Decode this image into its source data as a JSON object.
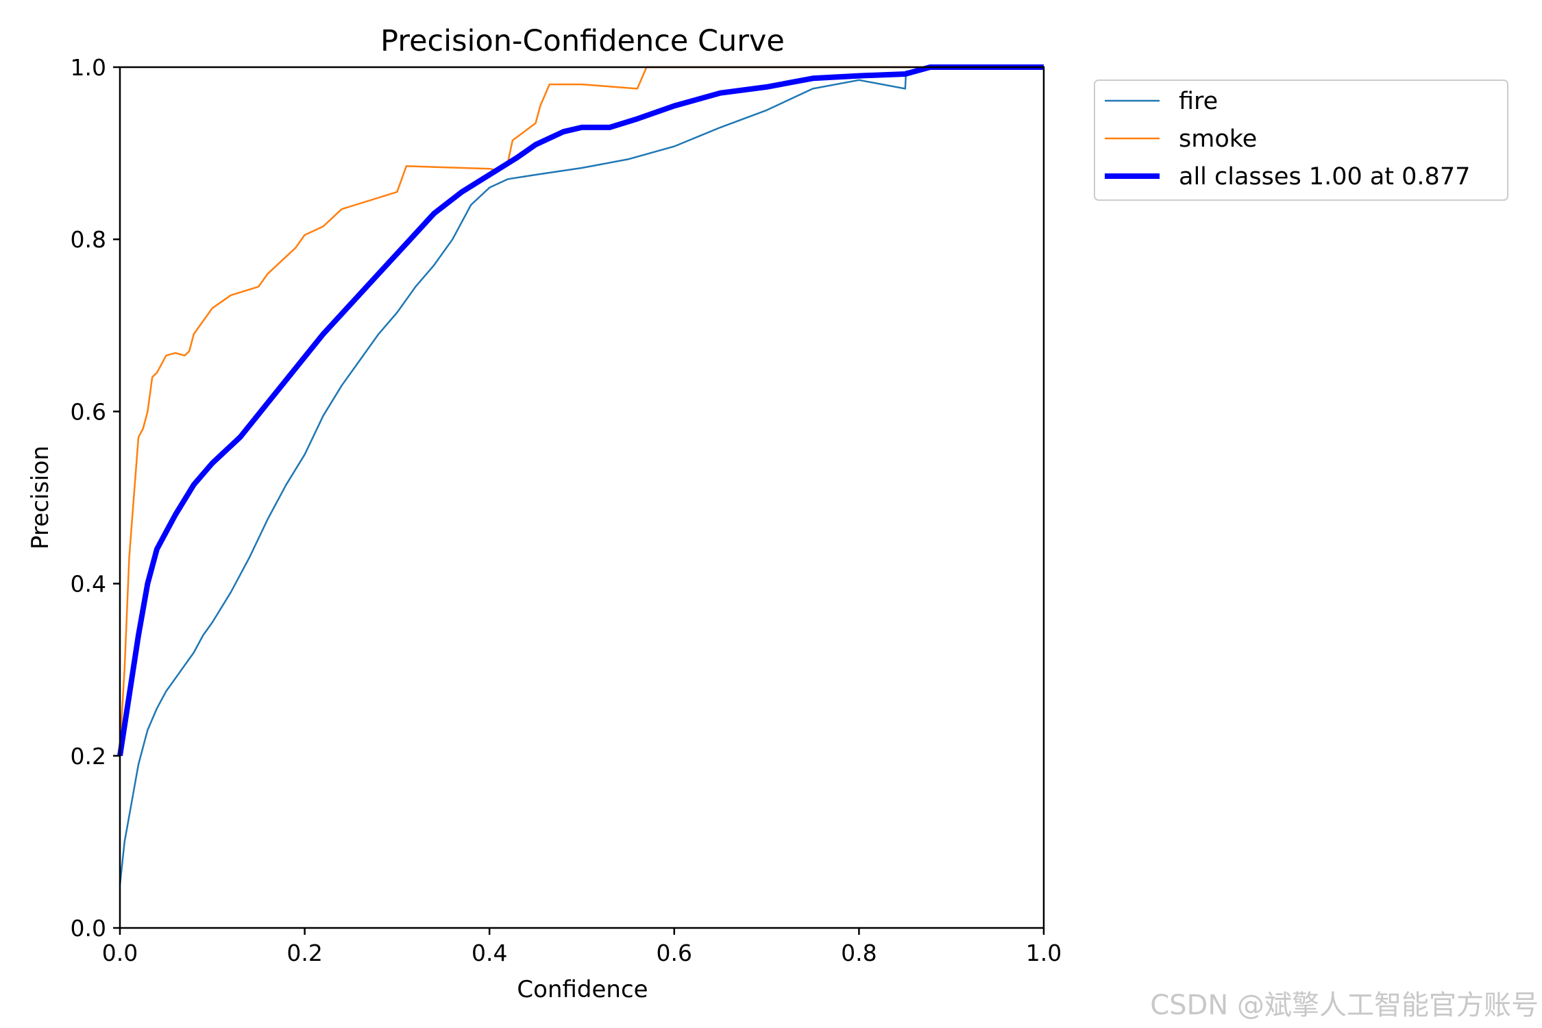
{
  "chart_data": {
    "type": "line",
    "title": "Precision-Confidence Curve",
    "xlabel": "Confidence",
    "ylabel": "Precision",
    "xlim": [
      0,
      1
    ],
    "ylim": [
      0,
      1
    ],
    "xticks": [
      "0.0",
      "0.2",
      "0.4",
      "0.6",
      "0.8",
      "1.0"
    ],
    "yticks": [
      "0.0",
      "0.2",
      "0.4",
      "0.6",
      "0.8",
      "1.0"
    ],
    "grid": false,
    "legend_position": "outside-top-right",
    "series": [
      {
        "name": "fire",
        "color": "#1f77b4",
        "width": "thin",
        "x": [
          0,
          0.005,
          0.01,
          0.02,
          0.03,
          0.04,
          0.05,
          0.06,
          0.07,
          0.08,
          0.09,
          0.1,
          0.12,
          0.14,
          0.16,
          0.18,
          0.2,
          0.22,
          0.24,
          0.26,
          0.28,
          0.3,
          0.32,
          0.34,
          0.36,
          0.38,
          0.4,
          0.42,
          0.45,
          0.5,
          0.55,
          0.6,
          0.65,
          0.7,
          0.75,
          0.8,
          0.85,
          0.851,
          0.9,
          1.0
        ],
        "y": [
          0.05,
          0.1,
          0.13,
          0.19,
          0.23,
          0.255,
          0.275,
          0.29,
          0.305,
          0.32,
          0.34,
          0.355,
          0.39,
          0.43,
          0.475,
          0.515,
          0.55,
          0.595,
          0.63,
          0.66,
          0.69,
          0.715,
          0.745,
          0.77,
          0.8,
          0.84,
          0.86,
          0.87,
          0.875,
          0.883,
          0.893,
          0.908,
          0.93,
          0.95,
          0.975,
          0.985,
          0.975,
          0.995,
          1.0,
          1.0
        ]
      },
      {
        "name": "smoke",
        "color": "#ff7f0e",
        "width": "thin",
        "x": [
          0,
          0.005,
          0.01,
          0.015,
          0.02,
          0.025,
          0.03,
          0.035,
          0.04,
          0.045,
          0.05,
          0.06,
          0.07,
          0.075,
          0.08,
          0.09,
          0.1,
          0.12,
          0.15,
          0.16,
          0.18,
          0.19,
          0.2,
          0.22,
          0.24,
          0.3,
          0.31,
          0.4,
          0.41,
          0.42,
          0.425,
          0.45,
          0.455,
          0.465,
          0.5,
          0.56,
          0.57,
          0.58,
          1.0
        ],
        "y": [
          0.21,
          0.3,
          0.43,
          0.5,
          0.57,
          0.58,
          0.6,
          0.64,
          0.645,
          0.655,
          0.665,
          0.668,
          0.665,
          0.67,
          0.69,
          0.705,
          0.72,
          0.735,
          0.745,
          0.76,
          0.78,
          0.79,
          0.805,
          0.815,
          0.835,
          0.855,
          0.885,
          0.882,
          0.88,
          0.89,
          0.915,
          0.935,
          0.955,
          0.98,
          0.98,
          0.975,
          1.0,
          1.0,
          1.0
        ]
      },
      {
        "name": "all classes 1.00 at 0.877",
        "color": "#0000ff",
        "width": "thick",
        "x": [
          0,
          0.01,
          0.02,
          0.03,
          0.04,
          0.05,
          0.06,
          0.08,
          0.1,
          0.13,
          0.16,
          0.19,
          0.22,
          0.25,
          0.28,
          0.31,
          0.34,
          0.37,
          0.4,
          0.43,
          0.45,
          0.48,
          0.5,
          0.53,
          0.56,
          0.6,
          0.65,
          0.7,
          0.75,
          0.8,
          0.85,
          0.877,
          0.9,
          1.0
        ],
        "y": [
          0.2,
          0.27,
          0.34,
          0.4,
          0.44,
          0.46,
          0.48,
          0.515,
          0.54,
          0.57,
          0.61,
          0.65,
          0.69,
          0.725,
          0.76,
          0.795,
          0.83,
          0.855,
          0.875,
          0.895,
          0.91,
          0.925,
          0.93,
          0.93,
          0.94,
          0.955,
          0.97,
          0.977,
          0.987,
          0.99,
          0.992,
          1.0,
          1.0,
          1.0
        ]
      }
    ]
  },
  "watermark": "CSDN @斌擎人工智能官方账号"
}
